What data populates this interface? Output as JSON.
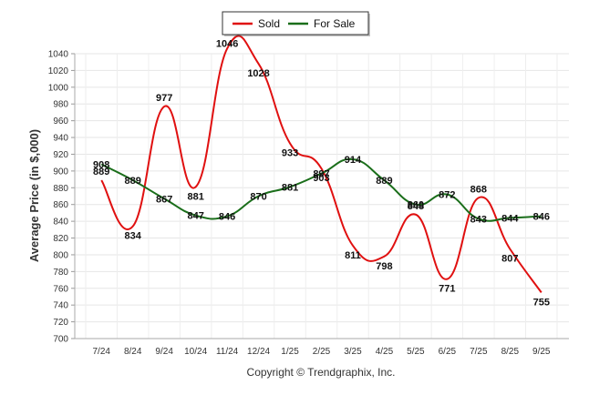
{
  "chart_data": {
    "type": "line",
    "title": "",
    "xlabel": "",
    "ylabel": "Average Price (in $,000)",
    "ylim": [
      700,
      1040
    ],
    "y_ticks": [
      700,
      720,
      740,
      760,
      780,
      800,
      820,
      840,
      860,
      880,
      900,
      920,
      940,
      960,
      980,
      1000,
      1020,
      1040
    ],
    "categories": [
      "7/24",
      "8/24",
      "9/24",
      "10/24",
      "11/24",
      "12/24",
      "1/25",
      "2/25",
      "3/25",
      "4/25",
      "5/25",
      "6/25",
      "7/25",
      "8/25",
      "9/25"
    ],
    "series": [
      {
        "name": "Sold",
        "color": "#e01010",
        "values": [
          889,
          834,
          977,
          881,
          1046,
          1028,
          933,
          903,
          811,
          798,
          848,
          771,
          868,
          807,
          755
        ]
      },
      {
        "name": "For Sale",
        "color": "#1a6e1a",
        "values": [
          908,
          889,
          867,
          847,
          846,
          870,
          881,
          897,
          914,
          889,
          860,
          872,
          843,
          844,
          846
        ]
      }
    ],
    "legend": "top-center",
    "grid": true,
    "copyright": "Copyright © Trendgraphix, Inc."
  }
}
